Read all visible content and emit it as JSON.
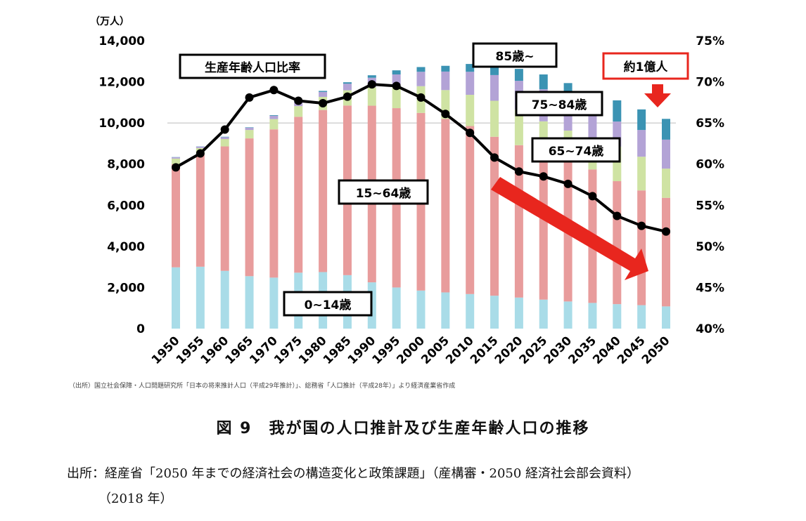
{
  "chart_data": {
    "type": "bar",
    "stacked": true,
    "years": [
      "1950",
      "1955",
      "1960",
      "1965",
      "1970",
      "1975",
      "1980",
      "1985",
      "1990",
      "1995",
      "2000",
      "2005",
      "2010",
      "2015",
      "2020",
      "2025",
      "2030",
      "2035",
      "2040",
      "2045",
      "2050"
    ],
    "series": [
      {
        "name": "0~14歳",
        "color": "#a9dce8",
        "values": [
          2980,
          3010,
          2810,
          2550,
          2480,
          2720,
          2750,
          2600,
          2250,
          2000,
          1850,
          1760,
          1680,
          1600,
          1510,
          1410,
          1320,
          1250,
          1190,
          1140,
          1080
        ]
      },
      {
        "name": "15~64歳",
        "color": "#e89c9c",
        "values": [
          5020,
          5470,
          6050,
          6700,
          7210,
          7580,
          7880,
          8250,
          8590,
          8720,
          8640,
          8440,
          8170,
          7730,
          7410,
          7170,
          6880,
          6490,
          5980,
          5580,
          5280
        ]
      },
      {
        "name": "65~74歳",
        "color": "#cfe3a3",
        "values": [
          270,
          300,
          360,
          410,
          500,
          520,
          640,
          740,
          900,
          1100,
          1300,
          1400,
          1520,
          1750,
          1740,
          1500,
          1430,
          1520,
          1680,
          1640,
          1420
        ]
      },
      {
        "name": "75~84歳",
        "color": "#b3a3d6",
        "values": [
          60,
          70,
          90,
          110,
          160,
          190,
          240,
          320,
          460,
          540,
          700,
          900,
          1120,
          1250,
          1390,
          1560,
          1490,
          1250,
          1220,
          1300,
          1410
        ]
      },
      {
        "name": "85歳~",
        "color": "#3b93b3",
        "values": [
          10,
          10,
          20,
          20,
          30,
          40,
          50,
          70,
          120,
          200,
          230,
          280,
          380,
          490,
          580,
          720,
          820,
          990,
          1030,
          1000,
          1010
        ]
      }
    ],
    "line": {
      "name": "生産年齢人口比率",
      "values": [
        59.6,
        61.3,
        64.2,
        68.1,
        69.0,
        67.7,
        67.4,
        68.2,
        69.7,
        69.5,
        68.1,
        66.1,
        63.8,
        60.8,
        59.1,
        58.5,
        57.6,
        56.1,
        53.7,
        52.5,
        51.8
      ]
    },
    "y_left": {
      "unit_label": "（万人）",
      "min": 0,
      "max": 14000,
      "ticks": [
        "0",
        "2,000",
        "4,000",
        "6,000",
        "8,000",
        "10,000",
        "12,000",
        "14,000"
      ],
      "tick_values": [
        0,
        2000,
        4000,
        6000,
        8000,
        10000,
        12000,
        14000
      ]
    },
    "y_right": {
      "min": 40,
      "max": 75,
      "ticks": [
        "40%",
        "45%",
        "50%",
        "55%",
        "60%",
        "65%",
        "70%",
        "75%"
      ],
      "tick_values": [
        40,
        45,
        50,
        55,
        60,
        65,
        70,
        75
      ]
    },
    "reference_line_value": 10000,
    "annotations": {
      "ratio_label": "生産年齢人口比率",
      "age85": "85歳~",
      "age75": "75~84歳",
      "age65": "65~74歳",
      "age15": "15~64歳",
      "age0": "0~14歳",
      "callout": "約1億人"
    },
    "colors": {
      "line": "#000000",
      "arrow": "#e8261e",
      "callout_border": "#e8261e",
      "gridline": "#bbbbbb"
    }
  },
  "source_note": "（出所）国立社会保障・人口問題研究所「日本の将来推計人口（平成29年推計）」、総務省「人口推計（平成28年）」より経済産業省作成",
  "figure_caption": "図 9　我が国の人口推計及び生産年齢人口の推移",
  "citation": "出所：経産省「2050 年までの経済社会の構造変化と政策課題」（産構審・2050 経済社会部会資料）",
  "citation_year": "（2018 年）"
}
